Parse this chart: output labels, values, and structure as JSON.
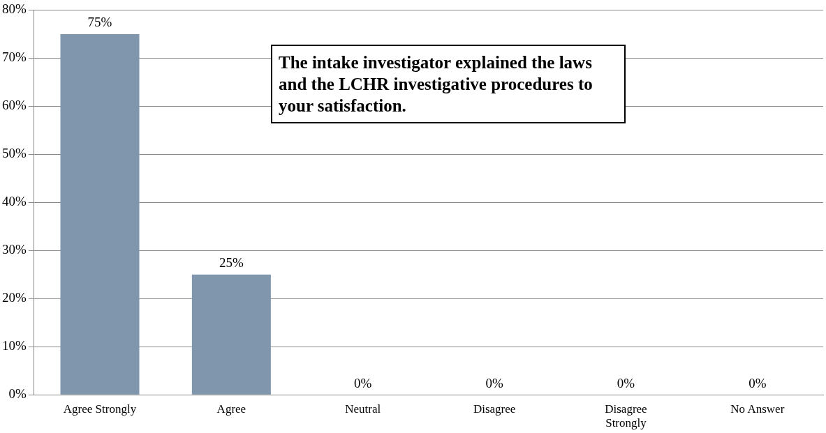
{
  "chart_data": {
    "type": "bar",
    "title": "The intake investigator explained the laws and the LCHR investigative procedures to your satisfaction.",
    "categories": [
      "Agree Strongly",
      "Agree",
      "Neutral",
      "Disagree",
      "Disagree Strongly",
      "No Answer"
    ],
    "values": [
      75,
      25,
      0,
      0,
      0,
      0
    ],
    "value_labels": [
      "75%",
      "25%",
      "0%",
      "0%",
      "0%",
      "0%"
    ],
    "color": "#7f96ad",
    "ylim": [
      0,
      80
    ],
    "yticks": [
      {
        "value": 0,
        "label": "0%"
      },
      {
        "value": 10,
        "label": "10%"
      },
      {
        "value": 20,
        "label": "20%"
      },
      {
        "value": 30,
        "label": "30%"
      },
      {
        "value": 40,
        "label": "40%"
      },
      {
        "value": 50,
        "label": "50%"
      },
      {
        "value": 60,
        "label": "60%"
      },
      {
        "value": 70,
        "label": "70%"
      },
      {
        "value": 80,
        "label": "80%"
      }
    ],
    "grid": "y",
    "legend": false
  }
}
